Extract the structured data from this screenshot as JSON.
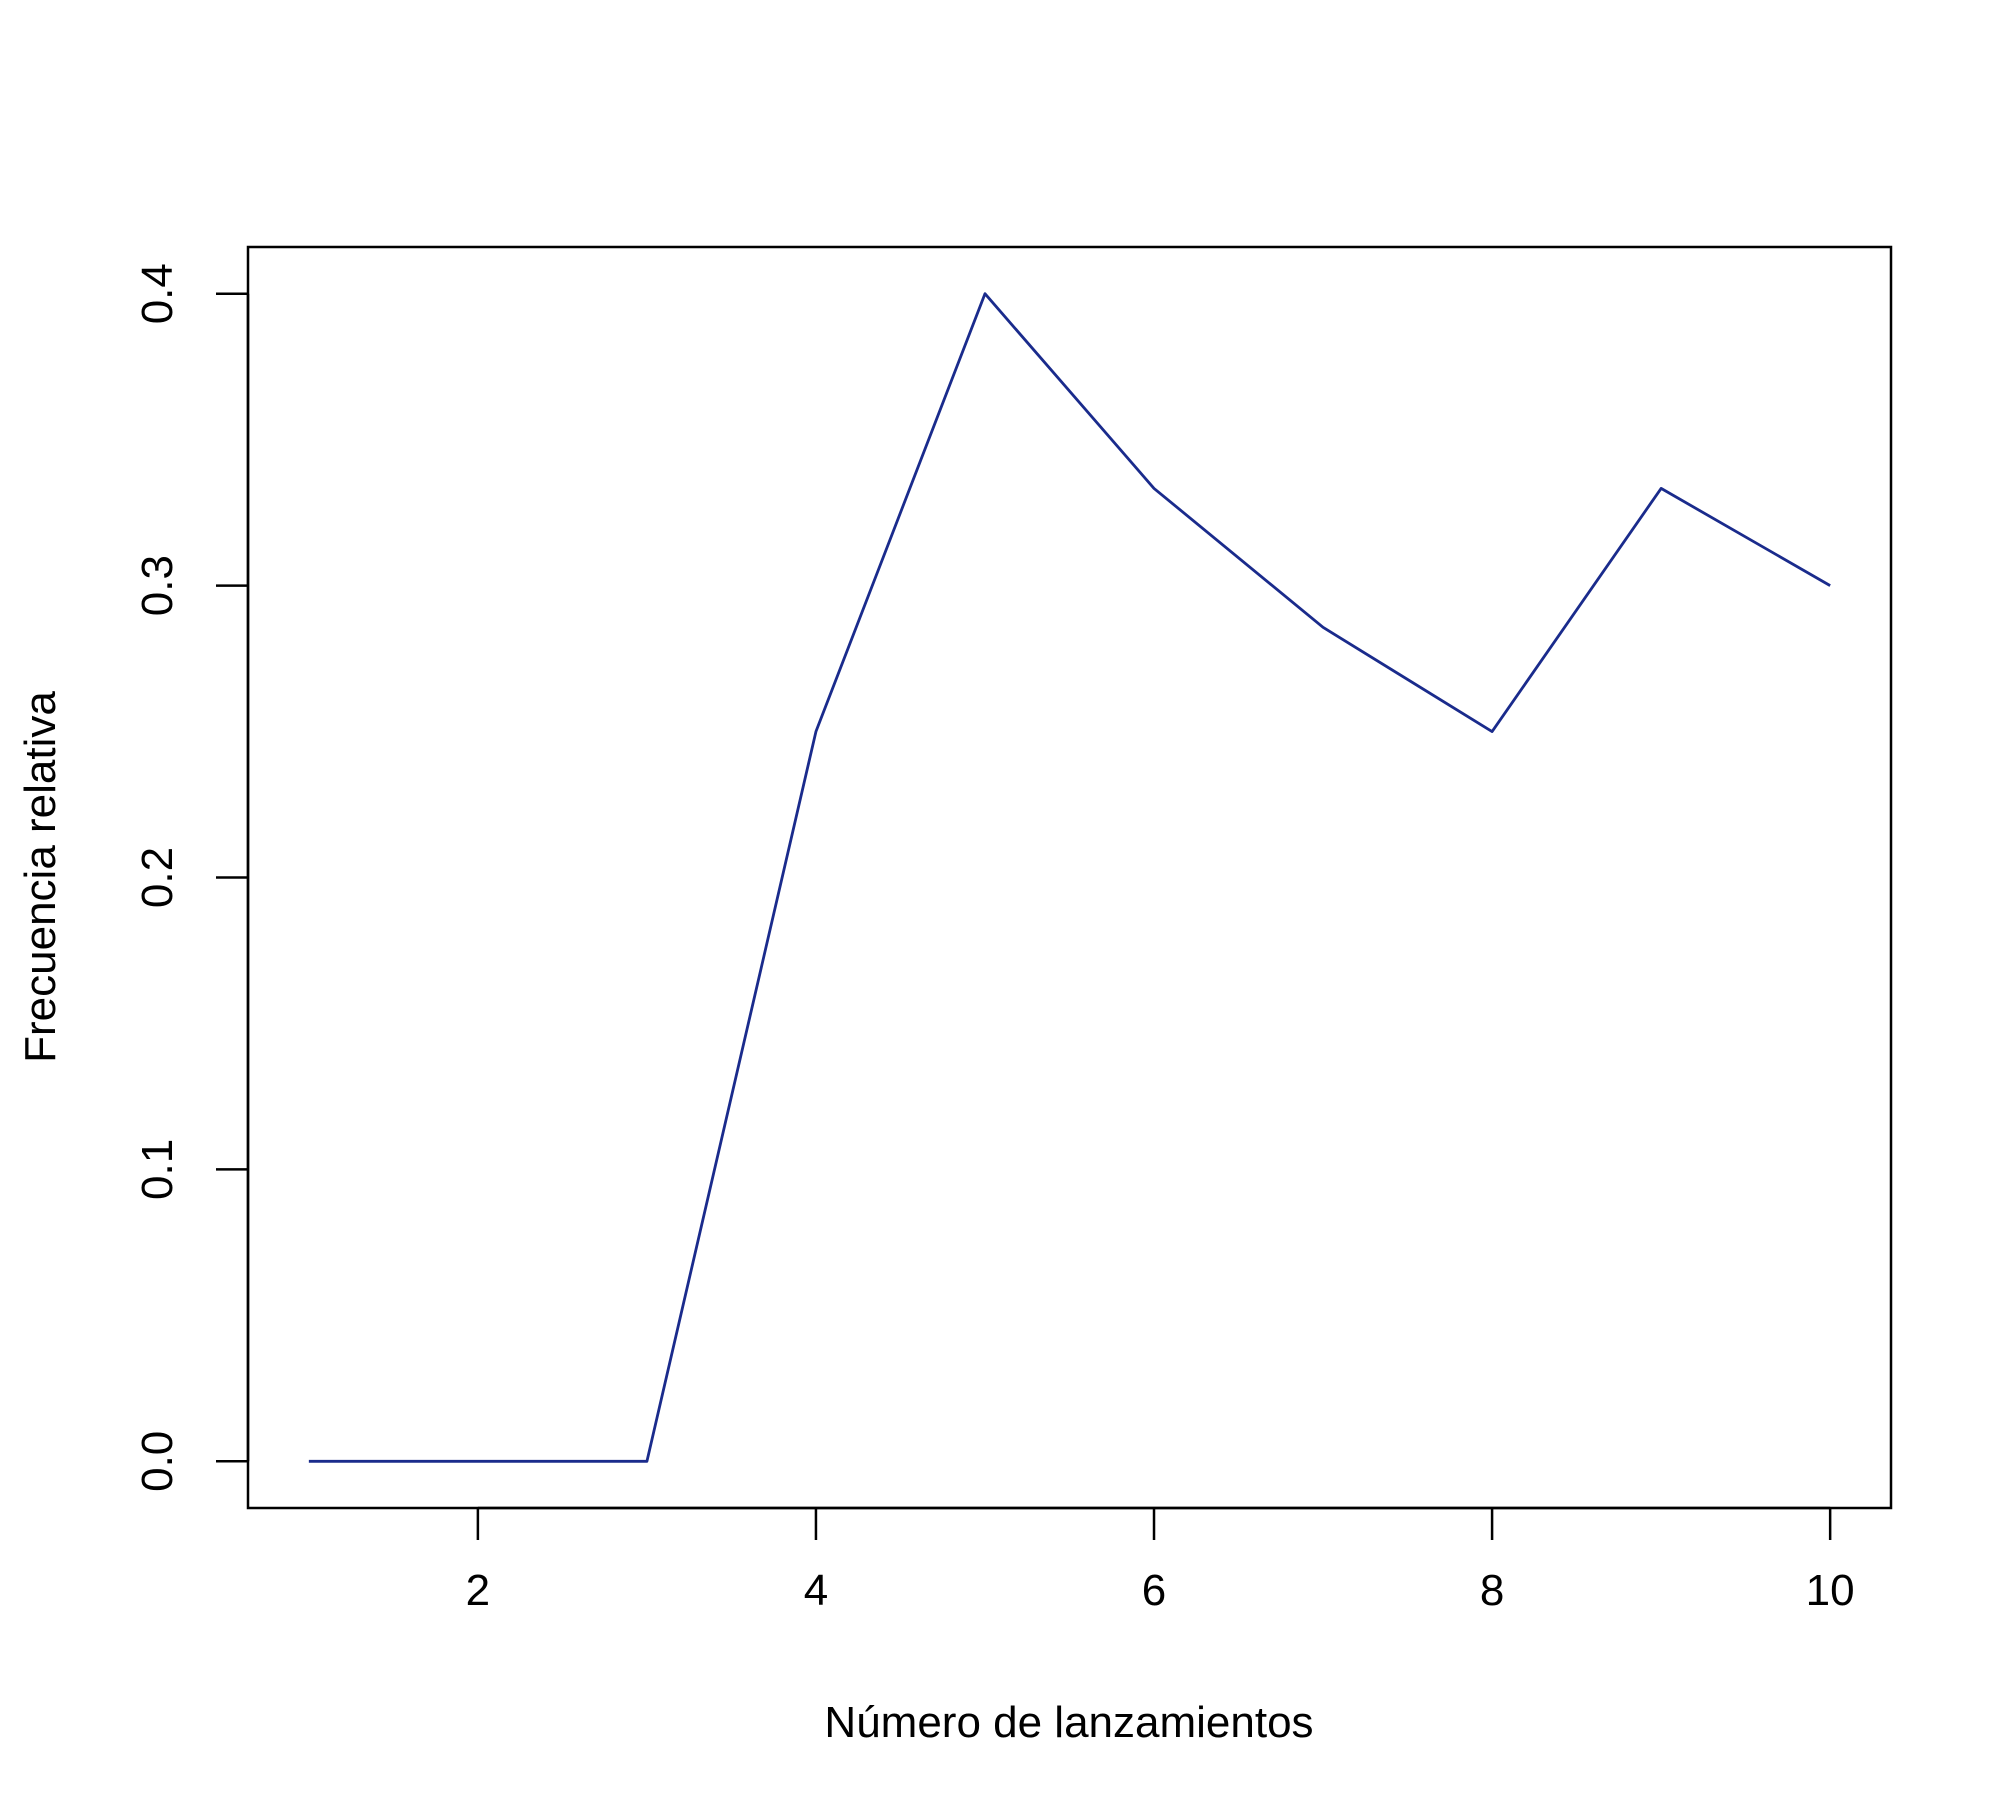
{
  "chart_data": {
    "type": "line",
    "title": "",
    "xlabel": "Número de lanzamientos",
    "ylabel": "Frecuencia relativa",
    "x": [
      1,
      2,
      3,
      4,
      5,
      6,
      7,
      8,
      9,
      10
    ],
    "series": [
      {
        "values": [
          0.0,
          0.0,
          0.0,
          0.25,
          0.4,
          0.3333,
          0.2857,
          0.25,
          0.3333,
          0.3
        ],
        "color": "#1a2b8c"
      }
    ],
    "xlim": [
      0.64,
      10.36
    ],
    "ylim": [
      -0.016,
      0.416
    ],
    "xticks": [
      2,
      4,
      6,
      8,
      10
    ],
    "xtick_labels": [
      "2",
      "4",
      "6",
      "8",
      "10"
    ],
    "yticks": [
      0.0,
      0.1,
      0.2,
      0.3,
      0.4
    ],
    "ytick_labels": [
      "0.0",
      "0.1",
      "0.2",
      "0.3",
      "0.4"
    ],
    "grid": false,
    "legend": "none"
  }
}
